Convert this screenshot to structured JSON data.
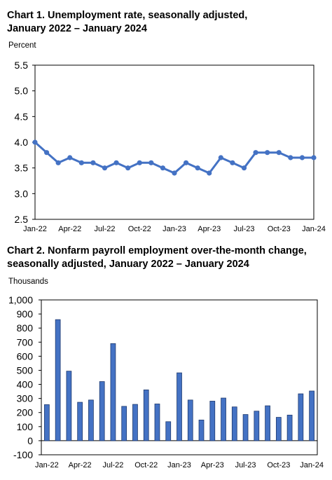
{
  "chart1": {
    "title_line1": "Chart 1. Unemployment rate, seasonally adjusted,",
    "title_line2": "January 2022 – January 2024",
    "unit_label": "Percent"
  },
  "chart2": {
    "title_line1": "Chart 2. Nonfarm payroll employment over-the-month change,",
    "title_line2": "seasonally adjusted, January 2022 – January 2024",
    "unit_label": "Thousands"
  },
  "colors": {
    "line": "#4472C4",
    "bar": "#4472C4",
    "bar_outline": "#1f3a6e",
    "frame": "#000000"
  },
  "chart_data": [
    {
      "type": "line",
      "title": "Chart 1. Unemployment rate, seasonally adjusted, January 2022 – January 2024",
      "ylabel": "Percent",
      "ylim": [
        2.5,
        5.5
      ],
      "yticks": [
        "2.5",
        "3.0",
        "3.5",
        "4.0",
        "4.5",
        "5.0",
        "5.5"
      ],
      "ytick_values": [
        2.5,
        3.0,
        3.5,
        4.0,
        4.5,
        5.0,
        5.5
      ],
      "xtick_labels": [
        "Jan-22",
        "Apr-22",
        "Jul-22",
        "Oct-22",
        "Jan-23",
        "Apr-23",
        "Jul-23",
        "Oct-23",
        "Jan-24"
      ],
      "x": [
        "Jan-22",
        "Feb-22",
        "Mar-22",
        "Apr-22",
        "May-22",
        "Jun-22",
        "Jul-22",
        "Aug-22",
        "Sep-22",
        "Oct-22",
        "Nov-22",
        "Dec-22",
        "Jan-23",
        "Feb-23",
        "Mar-23",
        "Apr-23",
        "May-23",
        "Jun-23",
        "Jul-23",
        "Aug-23",
        "Sep-23",
        "Oct-23",
        "Nov-23",
        "Dec-23",
        "Jan-24"
      ],
      "values": [
        4.0,
        3.8,
        3.6,
        3.7,
        3.6,
        3.6,
        3.5,
        3.6,
        3.5,
        3.6,
        3.6,
        3.5,
        3.4,
        3.6,
        3.5,
        3.4,
        3.7,
        3.6,
        3.5,
        3.8,
        3.8,
        3.8,
        3.7,
        3.7,
        3.7
      ],
      "grid": false,
      "markers": true
    },
    {
      "type": "bar",
      "title": "Chart 2. Nonfarm payroll employment over-the-month change, seasonally adjusted, January 2022 – January 2024",
      "ylabel": "Thousands",
      "ylim": [
        -100,
        1000
      ],
      "yticks": [
        "-100",
        "0",
        "100",
        "200",
        "300",
        "400",
        "500",
        "600",
        "700",
        "800",
        "900",
        "1,000"
      ],
      "ytick_values": [
        -100,
        0,
        100,
        200,
        300,
        400,
        500,
        600,
        700,
        800,
        900,
        1000
      ],
      "xtick_labels": [
        "Jan-22",
        "Apr-22",
        "Jul-22",
        "Oct-22",
        "Jan-23",
        "Apr-23",
        "Jul-23",
        "Oct-23",
        "Jan-24"
      ],
      "categories": [
        "Jan-22",
        "Feb-22",
        "Mar-22",
        "Apr-22",
        "May-22",
        "Jun-22",
        "Jul-22",
        "Aug-22",
        "Sep-22",
        "Oct-22",
        "Nov-22",
        "Dec-22",
        "Jan-23",
        "Feb-23",
        "Mar-23",
        "Apr-23",
        "May-23",
        "Jun-23",
        "Jul-23",
        "Aug-23",
        "Sep-23",
        "Oct-23",
        "Nov-23",
        "Dec-23",
        "Jan-24"
      ],
      "values": [
        256,
        860,
        494,
        273,
        289,
        420,
        690,
        244,
        258,
        361,
        261,
        135,
        482,
        289,
        147,
        281,
        303,
        240,
        186,
        210,
        248,
        166,
        182,
        333,
        353
      ],
      "grid": false
    }
  ]
}
